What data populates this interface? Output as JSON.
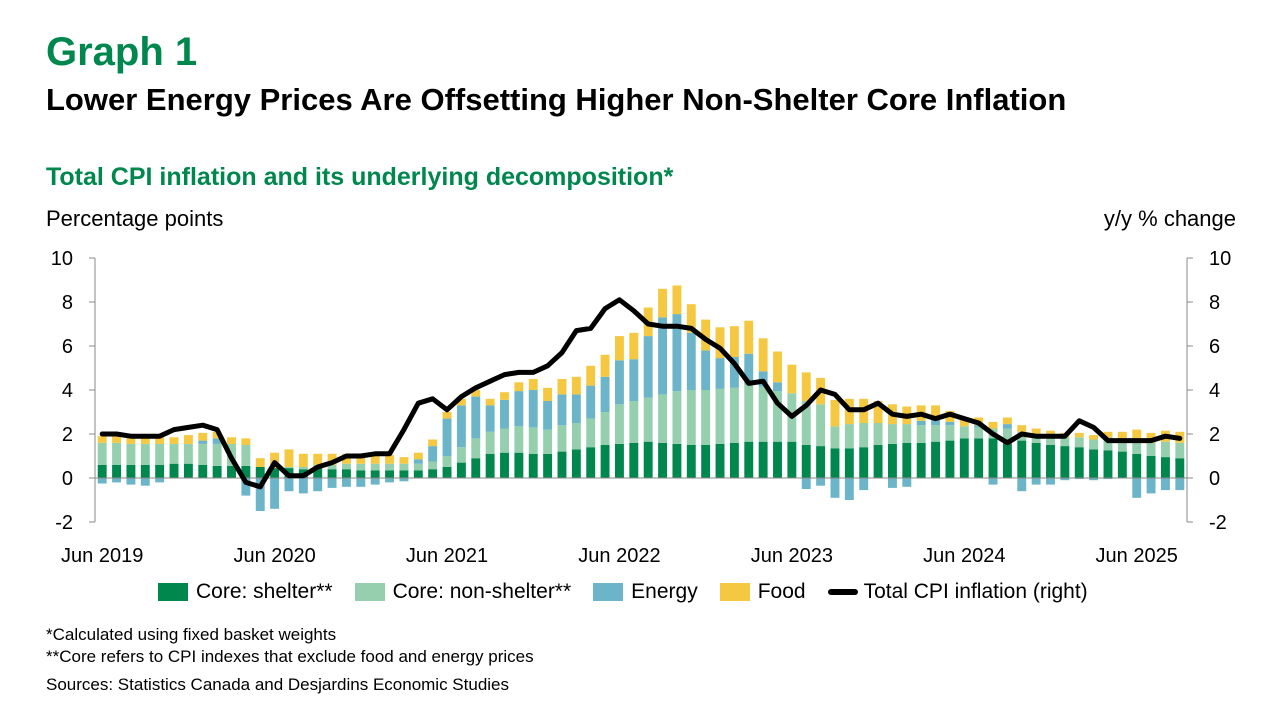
{
  "header": {
    "graph_label": "Graph 1",
    "title": "Lower Energy Prices Are Offsetting Higher Non-Shelter Core Inflation",
    "subtitle": "Total CPI inflation and its underlying decomposition*"
  },
  "notes": {
    "note1": "*Calculated using fixed basket weights",
    "note2": "**Core refers to CPI indexes that exclude food and energy prices",
    "source": "Sources: Statistics Canada and Desjardins Economic Studies"
  },
  "colors": {
    "shelter": "#00874e",
    "nonshelter": "#95cfae",
    "energy": "#6cb4c8",
    "food": "#f5c842",
    "total": "#000000"
  },
  "chart_data": {
    "type": "bar",
    "stacked": true,
    "ylabel_left": "Percentage points",
    "ylabel_right": "y/y % change",
    "ylim": [
      -2,
      10
    ],
    "yticks": [
      -2,
      0,
      2,
      4,
      6,
      8,
      10
    ],
    "x_start": "Jun 2019",
    "x_end": "Jun 2025",
    "x_tick_labels": [
      {
        "index": 0,
        "label": "Jun 2019"
      },
      {
        "index": 12,
        "label": "Jun 2020"
      },
      {
        "index": 24,
        "label": "Jun 2021"
      },
      {
        "index": 36,
        "label": "Jun 2022"
      },
      {
        "index": 48,
        "label": "Jun 2023"
      },
      {
        "index": 60,
        "label": "Jun 2024"
      },
      {
        "index": 72,
        "label": "Jun 2025"
      }
    ],
    "legend_position": "bottom",
    "series": [
      {
        "name": "Core: shelter**",
        "kind": "bar",
        "color_key": "shelter",
        "values": [
          0.6,
          0.6,
          0.6,
          0.6,
          0.6,
          0.65,
          0.65,
          0.6,
          0.55,
          0.55,
          0.55,
          0.5,
          0.45,
          0.45,
          0.4,
          0.45,
          0.4,
          0.4,
          0.35,
          0.35,
          0.35,
          0.35,
          0.35,
          0.4,
          0.5,
          0.7,
          0.9,
          1.1,
          1.15,
          1.15,
          1.1,
          1.1,
          1.2,
          1.3,
          1.4,
          1.5,
          1.55,
          1.6,
          1.65,
          1.6,
          1.55,
          1.5,
          1.5,
          1.55,
          1.6,
          1.65,
          1.65,
          1.65,
          1.65,
          1.5,
          1.45,
          1.35,
          1.35,
          1.4,
          1.5,
          1.55,
          1.6,
          1.6,
          1.65,
          1.7,
          1.8,
          1.8,
          1.8,
          1.75,
          1.7,
          1.6,
          1.5,
          1.45,
          1.4,
          1.3,
          1.25,
          1.2,
          1.1,
          1.0,
          0.95,
          0.9
        ]
      },
      {
        "name": "Core: non-shelter**",
        "kind": "bar",
        "color_key": "nonshelter",
        "values": [
          1.0,
          1.0,
          0.95,
          0.95,
          0.95,
          0.9,
          0.9,
          0.95,
          1.0,
          1.0,
          0.95,
          0.0,
          0.0,
          0.05,
          0.1,
          0.15,
          0.2,
          0.25,
          0.3,
          0.3,
          0.3,
          0.3,
          0.3,
          0.35,
          0.5,
          0.7,
          0.9,
          1.0,
          1.1,
          1.2,
          1.2,
          1.1,
          1.2,
          1.2,
          1.3,
          1.5,
          1.8,
          1.9,
          2.0,
          2.2,
          2.4,
          2.5,
          2.5,
          2.5,
          2.5,
          2.6,
          2.5,
          2.3,
          2.2,
          2.0,
          1.9,
          1.0,
          1.1,
          1.1,
          1.0,
          0.9,
          0.85,
          0.8,
          0.75,
          0.7,
          0.55,
          0.5,
          0.45,
          0.5,
          0.4,
          0.35,
          0.4,
          0.4,
          0.45,
          0.45,
          0.6,
          0.6,
          0.6,
          0.6,
          0.7,
          0.7
        ]
      },
      {
        "name": "Energy",
        "kind": "bar",
        "color_key": "energy",
        "values": [
          -0.25,
          -0.2,
          -0.3,
          -0.35,
          -0.2,
          0.0,
          0.0,
          0.15,
          0.25,
          0.0,
          -0.8,
          -1.5,
          -1.4,
          -0.6,
          -0.7,
          -0.6,
          -0.45,
          -0.4,
          -0.4,
          -0.3,
          -0.2,
          -0.15,
          0.2,
          0.7,
          1.7,
          1.9,
          1.9,
          1.2,
          1.3,
          1.6,
          1.7,
          1.3,
          1.4,
          1.3,
          1.5,
          1.6,
          2.0,
          1.9,
          2.8,
          3.5,
          3.5,
          2.6,
          1.8,
          1.4,
          1.4,
          1.4,
          0.7,
          0.4,
          0.0,
          -0.5,
          -0.35,
          -0.9,
          -1.0,
          -0.55,
          0.0,
          -0.45,
          -0.4,
          0.2,
          0.3,
          0.15,
          0.0,
          0.1,
          -0.3,
          0.2,
          -0.6,
          -0.3,
          -0.3,
          -0.1,
          -0.05,
          -0.1,
          -0.05,
          0.0,
          -0.9,
          -0.7,
          -0.55,
          -0.55
        ]
      },
      {
        "name": "Food",
        "kind": "bar",
        "color_key": "food",
        "values": [
          0.3,
          0.3,
          0.3,
          0.3,
          0.3,
          0.3,
          0.4,
          0.35,
          0.3,
          0.3,
          0.3,
          0.4,
          0.7,
          0.8,
          0.6,
          0.5,
          0.5,
          0.45,
          0.4,
          0.4,
          0.4,
          0.3,
          0.3,
          0.3,
          0.3,
          0.3,
          0.3,
          0.3,
          0.35,
          0.4,
          0.5,
          0.6,
          0.7,
          0.8,
          0.9,
          1.0,
          1.1,
          1.2,
          1.3,
          1.3,
          1.3,
          1.3,
          1.4,
          1.4,
          1.4,
          1.5,
          1.5,
          1.4,
          1.3,
          1.3,
          1.2,
          1.2,
          1.15,
          1.1,
          1.0,
          0.9,
          0.8,
          0.7,
          0.6,
          0.5,
          0.4,
          0.35,
          0.3,
          0.3,
          0.3,
          0.3,
          0.25,
          0.2,
          0.2,
          0.2,
          0.25,
          0.3,
          0.5,
          0.45,
          0.5,
          0.5
        ]
      },
      {
        "name": "Total CPI inflation (right)",
        "kind": "line",
        "color_key": "total",
        "values": [
          2.0,
          2.0,
          1.9,
          1.9,
          1.9,
          2.2,
          2.3,
          2.4,
          2.2,
          0.9,
          -0.2,
          -0.4,
          0.7,
          0.1,
          0.1,
          0.5,
          0.7,
          1.0,
          1.0,
          1.1,
          1.1,
          2.2,
          3.4,
          3.6,
          3.1,
          3.7,
          4.1,
          4.4,
          4.7,
          4.8,
          4.8,
          5.1,
          5.7,
          6.7,
          6.8,
          7.7,
          8.1,
          7.6,
          7.0,
          6.9,
          6.9,
          6.8,
          6.3,
          5.9,
          5.2,
          4.3,
          4.4,
          3.4,
          2.8,
          3.3,
          4.0,
          3.8,
          3.1,
          3.1,
          3.4,
          2.9,
          2.8,
          2.9,
          2.7,
          2.9,
          2.7,
          2.5,
          2.0,
          1.6,
          2.0,
          1.9,
          1.9,
          1.9,
          2.6,
          2.3,
          1.7,
          1.7,
          1.7,
          1.7,
          1.9,
          1.8
        ]
      }
    ]
  }
}
